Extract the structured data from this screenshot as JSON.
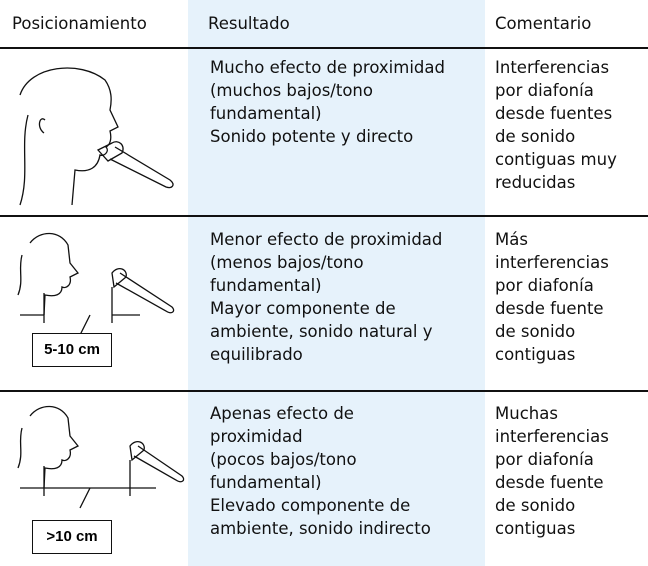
{
  "table": {
    "header": [
      "Posicionamiento",
      "Resultado",
      "Comentario"
    ],
    "rows": [
      {
        "result": [
          "Mucho efecto de proximidad",
          "(muchos bajos/tono",
          "fundamental)",
          "Sonido potente y directo"
        ],
        "comment": [
          "Interferencias",
          "por diafonía",
          "desde fuentes",
          "de sonido",
          "contiguas muy",
          "reducidas"
        ]
      },
      {
        "distance": "5-10 cm",
        "result": [
          "Menor efecto de proximidad",
          "(menos bajos/tono",
          "fundamental)",
          "Mayor componente de",
          "ambiente, sonido natural y",
          "equilibrado"
        ],
        "comment": [
          "Más",
          "interferencias",
          "por diafonía",
          "desde fuente",
          "de sonido",
          "contiguas"
        ]
      },
      {
        "distance": ">10 cm",
        "result": [
          "Apenas efecto de",
          "proximidad",
          "(pocos bajos/tono",
          "fundamental)",
          "Elevado componente de",
          "ambiente, sonido indirecto"
        ],
        "comment": [
          "Muchas",
          "interferencias",
          "por diafonía",
          "desde fuente",
          "de sonido",
          "contiguas"
        ]
      }
    ]
  }
}
